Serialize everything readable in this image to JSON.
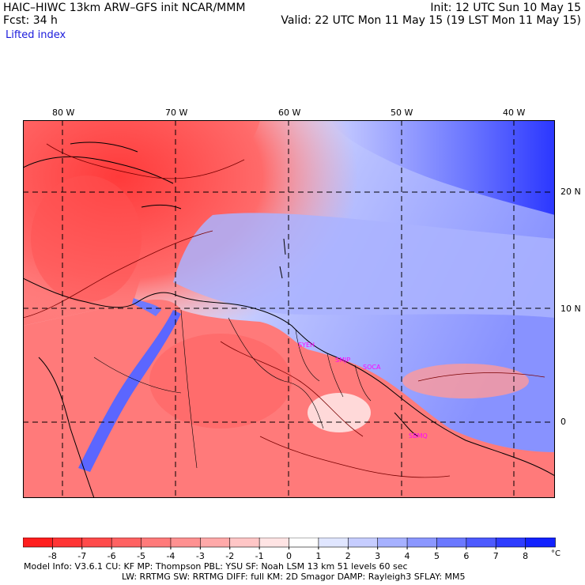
{
  "header": {
    "left_line1": "HAIC–HIWC 13km ARW–GFS init   NCAR/MMM",
    "left_line2": "Fcst:   34 h",
    "variable": "Lifted index",
    "right_line1": "Init: 12 UTC Sun 10 May 15",
    "right_line2": "Valid: 22 UTC Mon 11 May 15 (19 LST Mon 11 May 15)"
  },
  "map": {
    "lon_labels": [
      "80 W",
      "70 W",
      "60 W",
      "50 W",
      "40 W"
    ],
    "lat_labels": [
      "20 N",
      "10 N",
      "0"
    ],
    "stations": [
      "SYEH",
      "SMJP",
      "SOCA",
      "SBMQ"
    ],
    "colors": {
      "grid": "#000000",
      "coast": "#000000",
      "contour": "#7a0000",
      "station": "#ff00ff"
    }
  },
  "colorbar": {
    "labels": [
      "-8",
      "-7",
      "-6",
      "-5",
      "-4",
      "-3",
      "-2",
      "-1",
      "0",
      "1",
      "2",
      "3",
      "4",
      "5",
      "6",
      "7",
      "8"
    ],
    "unit": "°C",
    "colors": [
      "#ff1e1e",
      "#ff3434",
      "#ff4b4b",
      "#ff6262",
      "#ff7a7a",
      "#ff9191",
      "#ffa9a9",
      "#ffc6c6",
      "#ffe4e4",
      "#ffffff",
      "#e0e6ff",
      "#c6cdff",
      "#a6b1ff",
      "#8b97ff",
      "#6b78ff",
      "#4d5aff",
      "#2e3cff",
      "#1222ff"
    ]
  },
  "footer": {
    "line1": "Model Info: V3.6.1    CU: KF       MP: Thompson      PBL: YSU         SF: Noah LSM       13 km    51 levels   60 sec",
    "line2": "LW: RRTMG   SW: RRTMG  DIFF: full   KM: 2D Smagor DAMP: Rayleigh3  SFLAY: MM5"
  }
}
